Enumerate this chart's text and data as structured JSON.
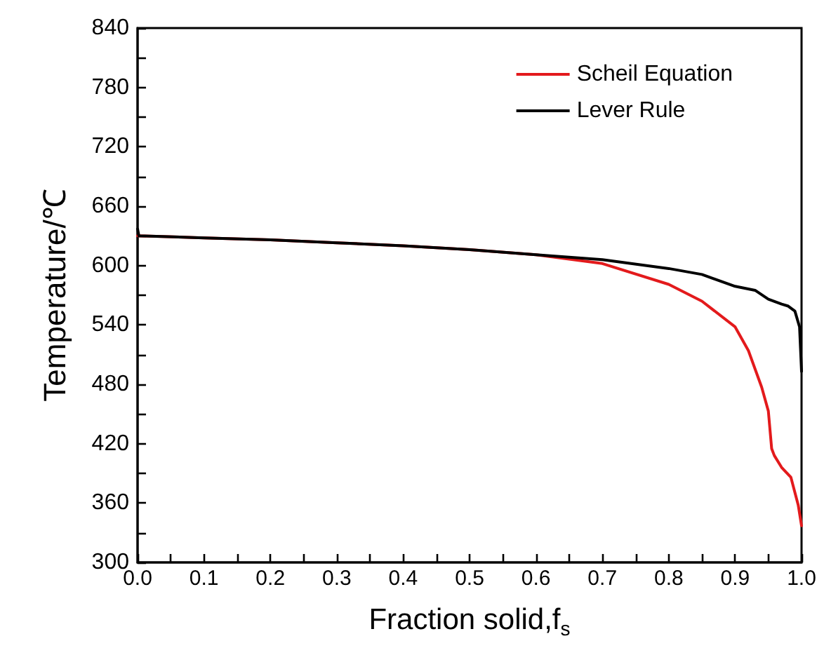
{
  "chart_data": {
    "type": "line",
    "xlabel": "Fraction solid,f$_{s}$",
    "ylabel": "Temperature/℃",
    "xlim": [
      0,
      1
    ],
    "xticks": [
      {
        "value": 0,
        "label": "0.0"
      },
      0.1,
      0.2,
      0.3,
      0.4,
      0.5,
      0.6,
      0.7,
      0.8,
      0.9,
      {
        "value": 1,
        "label": "1.0"
      }
    ],
    "ylim": [
      300,
      840
    ],
    "yticks": [
      300,
      360,
      420,
      480,
      540,
      600,
      660,
      720,
      780,
      840
    ],
    "legend": "top right",
    "grid": false,
    "marker": "none",
    "series": [
      {
        "name": "Scheil Equation",
        "color": "#e31a1c",
        "x": [
          0,
          0.1,
          0.2,
          0.3,
          0.4,
          0.5,
          0.6,
          0.7,
          0.8,
          0.85,
          0.9,
          0.92,
          0.94,
          0.95,
          0.955,
          0.959,
          0.97,
          0.984,
          0.995,
          1
        ],
        "values": [
          630,
          628,
          626,
          623,
          620,
          616,
          611,
          602,
          581,
          564,
          538,
          514,
          477,
          453,
          415,
          408,
          396,
          386,
          358,
          337
        ]
      },
      {
        "name": "Lever Rule",
        "color": "#000000",
        "x": [
          0,
          0.002,
          0.1,
          0.2,
          0.3,
          0.4,
          0.5,
          0.6,
          0.7,
          0.8,
          0.85,
          0.9,
          0.93,
          0.95,
          0.97,
          0.98,
          0.99,
          0.997,
          1
        ],
        "values": [
          637,
          630,
          628,
          626,
          623,
          620,
          616,
          611,
          606,
          597,
          591,
          579,
          575,
          566,
          561,
          559,
          554,
          538,
          493
        ]
      }
    ]
  }
}
